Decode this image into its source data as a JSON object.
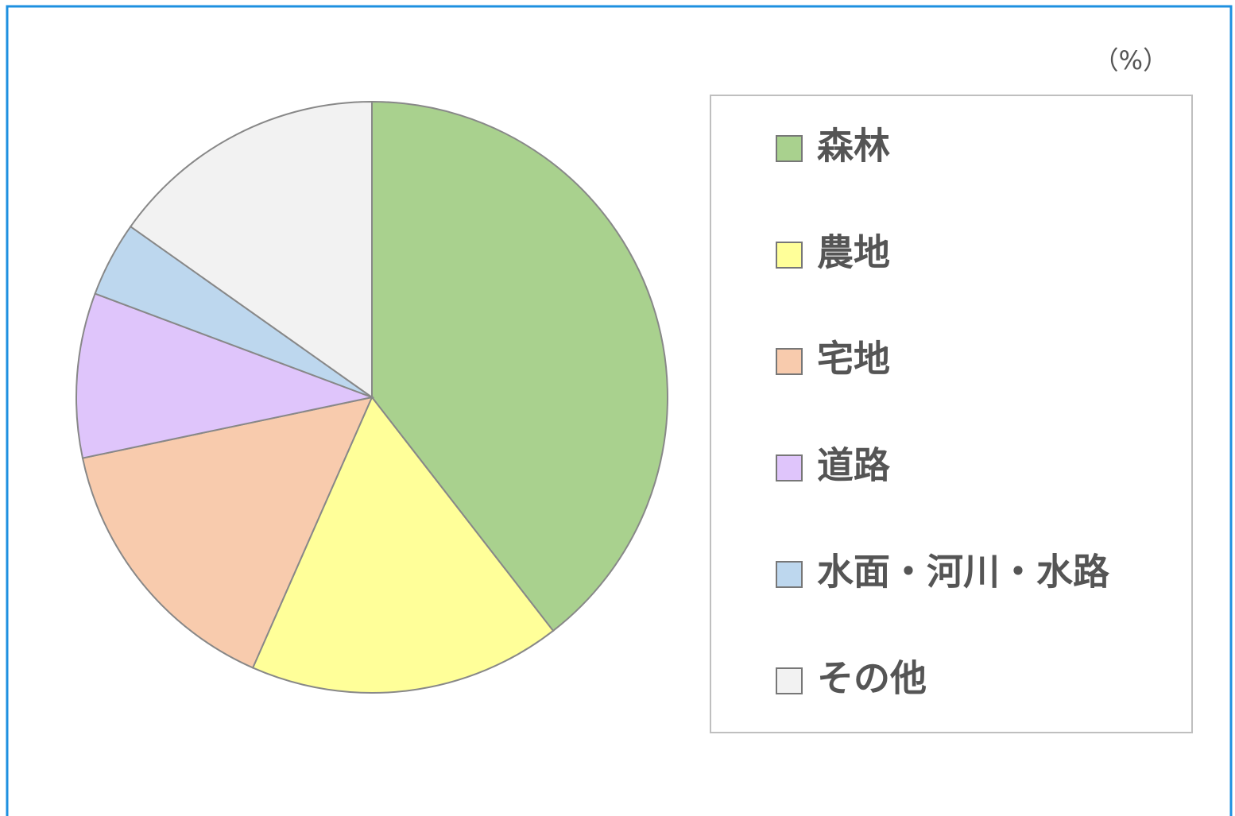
{
  "chart_data": {
    "type": "pie",
    "unit": "（%）",
    "categories": [
      "森林",
      "農地",
      "宅地",
      "道路",
      "水面・河川・水路",
      "その他"
    ],
    "values": [
      39.5,
      17.1,
      15.1,
      9.0,
      4.1,
      15.2
    ],
    "colors": [
      "#a9d18e",
      "#ffff99",
      "#f8cbad",
      "#dfc5fb",
      "#bdd7ee",
      "#f2f2f2"
    ],
    "legend": "right"
  }
}
